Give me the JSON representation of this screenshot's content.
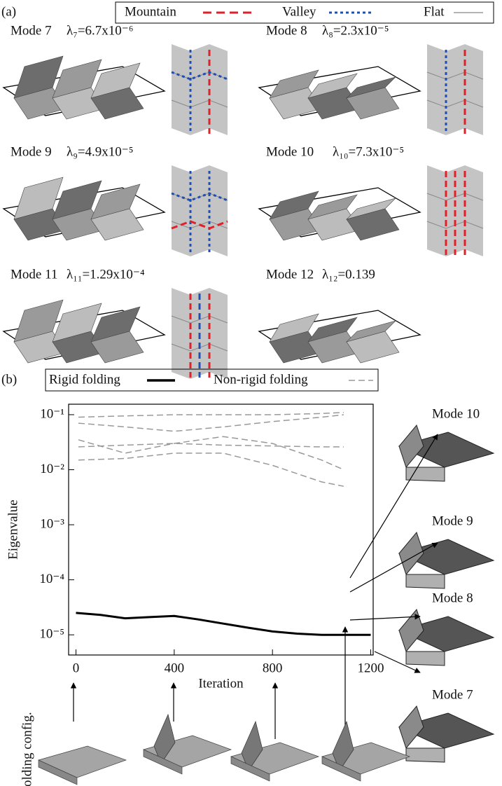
{
  "panel_a": {
    "label": "(a)",
    "legend": [
      "Mountain",
      "Valley",
      "Flat"
    ],
    "modes": [
      {
        "name": "Mode 7",
        "eigenvalue": "λ₇=6.7x10⁻⁶"
      },
      {
        "name": "Mode 8",
        "eigenvalue": "λ₈=2.3x10⁻⁵"
      },
      {
        "name": "Mode 9",
        "eigenvalue": "λ₉=4.9x10⁻⁵"
      },
      {
        "name": "Mode 10",
        "eigenvalue": "λ₁₀=7.3x10⁻⁵"
      },
      {
        "name": "Mode 11",
        "eigenvalue": "λ₁₁=1.29x10⁻⁴"
      },
      {
        "name": "Mode 12",
        "eigenvalue": "λ₁₂=0.139"
      }
    ]
  },
  "panel_b": {
    "label": "(b)",
    "config_label": "Folding config.",
    "mode_views": [
      "Mode 10",
      "Mode 9",
      "Mode 8",
      "Mode 7"
    ]
  },
  "chart_data": {
    "type": "line",
    "xlabel": "Iteration",
    "ylabel": "Eigenvalue",
    "log_y": true,
    "xlim": [
      -30,
      1210
    ],
    "ylim": [
      4.3e-06,
      0.155
    ],
    "xticks": [
      0,
      400,
      800,
      1200
    ],
    "yticks": [
      {
        "value": 0.1,
        "label": "10⁻¹"
      },
      {
        "value": 0.01,
        "label": "10⁻²"
      },
      {
        "value": 0.001,
        "label": "10⁻³"
      },
      {
        "value": 0.0001,
        "label": "10⁻⁴"
      },
      {
        "value": 1e-05,
        "label": "10⁻⁵"
      }
    ],
    "series": [
      {
        "name": "Rigid folding",
        "color": "#000000",
        "style": "solid",
        "x": [
          0,
          100,
          200,
          300,
          400,
          500,
          600,
          700,
          800,
          900,
          1000,
          1100,
          1200
        ],
        "values": [
          2.5e-05,
          2.3e-05,
          2e-05,
          2.1e-05,
          2.2e-05,
          1.9e-05,
          1.6e-05,
          1.35e-05,
          1.15e-05,
          1.05e-05,
          1e-05,
          1e-05,
          1e-05
        ]
      },
      {
        "name": "Non-rigid folding",
        "color": "#999999",
        "style": "dashed",
        "x": [
          10,
          200,
          400,
          600,
          800,
          1000,
          1090,
          null,
          10,
          200,
          400,
          600,
          800,
          1000,
          1090,
          null,
          10,
          200,
          400,
          600,
          800,
          1000,
          1090,
          null,
          10,
          200,
          400,
          600,
          800,
          1000,
          1090,
          null,
          10,
          200,
          400,
          600,
          800,
          1000,
          1090
        ],
        "values": [
          0.09,
          0.095,
          0.1,
          0.1,
          0.1,
          0.105,
          0.11,
          null,
          0.07,
          0.06,
          0.05,
          0.06,
          0.075,
          0.09,
          0.1,
          null,
          0.035,
          0.02,
          0.03,
          0.04,
          0.03,
          0.015,
          0.01,
          null,
          0.026,
          0.028,
          0.03,
          0.028,
          0.027,
          0.026,
          0.026,
          null,
          0.015,
          0.016,
          0.02,
          0.02,
          0.012,
          0.006,
          0.005
        ]
      }
    ]
  }
}
